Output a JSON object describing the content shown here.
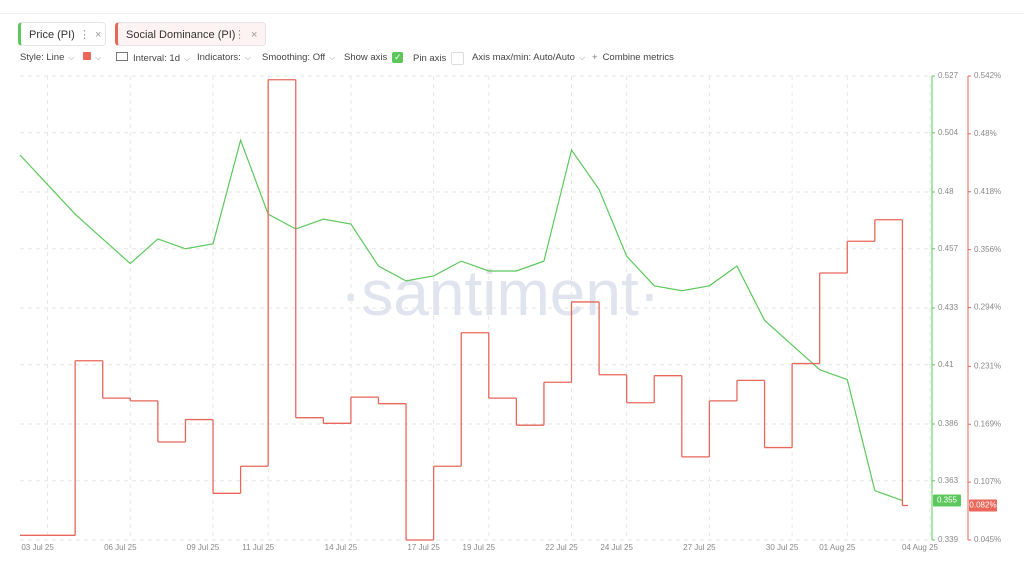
{
  "tabs": [
    "Price (PI)",
    "Social Dominance (PI)"
  ],
  "toolbar": {
    "style": "Style: Line",
    "interval": "Interval: 1d",
    "indicators": "Indicators:",
    "smoothing": "Smoothing: Off",
    "show_axis": "Show axis",
    "pin_axis": "Pin axis",
    "axis_minmax": "Axis max/min: Auto/Auto",
    "combine": "Combine metrics"
  },
  "watermark": "·santiment·",
  "chart_data": {
    "type": "line",
    "x": [
      "02 Jul 25",
      "03 Jul 25",
      "04 Jul 25",
      "05 Jul 25",
      "06 Jul 25",
      "07 Jul 25",
      "08 Jul 25",
      "09 Jul 25",
      "10 Jul 25",
      "11 Jul 25",
      "12 Jul 25",
      "13 Jul 25",
      "14 Jul 25",
      "15 Jul 25",
      "16 Jul 25",
      "17 Jul 25",
      "18 Jul 25",
      "19 Jul 25",
      "20 Jul 25",
      "21 Jul 25",
      "22 Jul 25",
      "23 Jul 25",
      "24 Jul 25",
      "25 Jul 25",
      "26 Jul 25",
      "27 Jul 25",
      "28 Jul 25",
      "29 Jul 25",
      "30 Jul 25",
      "31 Jul 25",
      "01 Aug 25",
      "02 Aug 25",
      "03 Aug 25"
    ],
    "xlim": [
      "02 Jul 25",
      "04 Aug 25"
    ],
    "xticks": [
      "03 Jul 25",
      "06 Jul 25",
      "09 Jul 25",
      "11 Jul 25",
      "14 Jul 25",
      "17 Jul 25",
      "19 Jul 25",
      "22 Jul 25",
      "24 Jul 25",
      "27 Jul 25",
      "30 Jul 25",
      "01 Aug 25",
      "04 Aug 25"
    ],
    "series": [
      {
        "name": "Price (PI)",
        "color": "#5cc85c",
        "style": "line",
        "last_label": "0.355",
        "values": [
          0.495,
          0.483,
          0.471,
          0.461,
          0.451,
          0.461,
          0.457,
          0.459,
          0.501,
          0.471,
          0.465,
          0.469,
          0.467,
          0.45,
          0.444,
          0.446,
          0.452,
          0.448,
          0.448,
          0.452,
          0.497,
          0.481,
          0.454,
          0.442,
          0.44,
          0.442,
          0.45,
          0.428,
          0.418,
          0.408,
          0.404,
          0.359,
          0.355
        ]
      },
      {
        "name": "Social Dominance (PI)",
        "color": "#e8665a",
        "style": "step",
        "axis": "y2",
        "last_label": "0.082%",
        "values": [
          0.05,
          0.05,
          0.237,
          0.197,
          0.194,
          0.15,
          0.174,
          0.095,
          0.124,
          0.538,
          0.176,
          0.17,
          0.198,
          0.191,
          0.045,
          0.124,
          0.267,
          0.197,
          0.168,
          0.214,
          0.3,
          0.222,
          0.192,
          0.221,
          0.134,
          0.194,
          0.216,
          0.144,
          0.234,
          0.331,
          0.365,
          0.388,
          0.082
        ]
      }
    ],
    "ylim": [
      0.339,
      0.527
    ],
    "yticks": [
      0.339,
      0.363,
      0.386,
      0.41,
      0.433,
      0.457,
      0.48,
      0.504,
      0.527
    ],
    "y2lim": [
      0.045,
      0.542
    ],
    "y2ticks": [
      {
        "value": 0.045,
        "label": "0.045%"
      },
      {
        "value": 0.107,
        "label": "0.107%"
      },
      {
        "value": 0.169,
        "label": "0.169%"
      },
      {
        "value": 0.231,
        "label": "0.231%"
      },
      {
        "value": 0.294,
        "label": "0.294%"
      },
      {
        "value": 0.356,
        "label": "0.356%"
      },
      {
        "value": 0.418,
        "label": "0.418%"
      },
      {
        "value": 0.48,
        "label": "0.48%"
      },
      {
        "value": 0.542,
        "label": "0.542%"
      }
    ],
    "grid": true
  }
}
